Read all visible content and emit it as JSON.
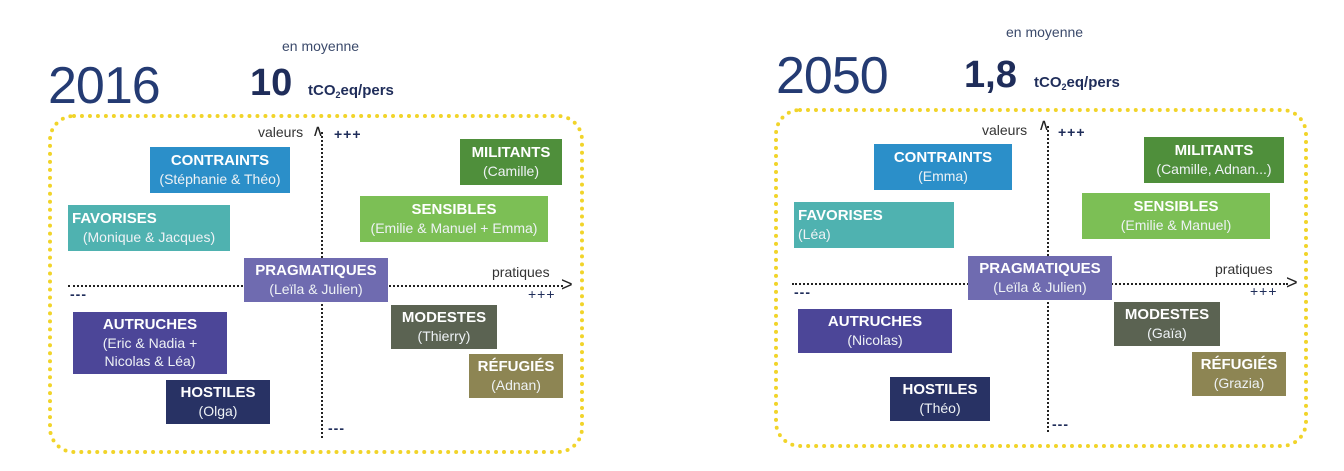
{
  "colors": {
    "contraints": "#2b8fc9",
    "militants": "#4f8f3b",
    "favorises": "#4fb2b0",
    "sensibles": "#7cbf55",
    "pragmatiques": "#6f6bb0",
    "modestes": "#5b6352",
    "autruches": "#4c4698",
    "refugies": "#8d8553",
    "hostiles": "#283264",
    "frame": "#f1d42a"
  },
  "axes": {
    "valeurs": "valeurs",
    "pratiques": "pratiques",
    "plus": "+++",
    "minus": "---"
  },
  "p2016": {
    "year": "2016",
    "moyenne": "en moyenne",
    "value": "10",
    "unit_pre": "tCO",
    "unit_sub": "2",
    "unit_post": "eq/pers",
    "groups": {
      "contraints": {
        "title": "CONTRAINTS",
        "members": "(Stéphanie & Théo)"
      },
      "militants": {
        "title": "MILITANTS",
        "members": "(Camille)"
      },
      "favorises": {
        "title": "FAVORISES",
        "members": "(Monique & Jacques)"
      },
      "sensibles": {
        "title": "SENSIBLES",
        "members": "(Emilie & Manuel + Emma)"
      },
      "pragmatiques": {
        "title": "PRAGMATIQUES",
        "members": "(Leïla & Julien)"
      },
      "modestes": {
        "title": "MODESTES",
        "members": "(Thierry)"
      },
      "autruches": {
        "title": "AUTRUCHES",
        "members1": "(Eric & Nadia +",
        "members2": "Nicolas & Léa)"
      },
      "refugies": {
        "title": "RÉFUGIÉS",
        "members": "(Adnan)"
      },
      "hostiles": {
        "title": "HOSTILES",
        "members": "(Olga)"
      }
    }
  },
  "p2050": {
    "year": "2050",
    "moyenne": "en moyenne",
    "value": "1,8",
    "unit_pre": "tCO",
    "unit_sub": "2",
    "unit_post": "eq/pers",
    "groups": {
      "contraints": {
        "title": "CONTRAINTS",
        "members": "(Emma)"
      },
      "militants": {
        "title": "MILITANTS",
        "members": "(Camille, Adnan...)"
      },
      "favorises": {
        "title": "FAVORISES",
        "members": "(Léa)"
      },
      "sensibles": {
        "title": "SENSIBLES",
        "members": "(Emilie & Manuel)"
      },
      "pragmatiques": {
        "title": "PRAGMATIQUES",
        "members": "(Leïla & Julien)"
      },
      "modestes": {
        "title": "MODESTES",
        "members": "(Gaïa)"
      },
      "autruches": {
        "title": "AUTRUCHES",
        "members": "(Nicolas)"
      },
      "refugies": {
        "title": "RÉFUGIÉS",
        "members": "(Grazia)"
      },
      "hostiles": {
        "title": "HOSTILES",
        "members": "(Théo)"
      }
    }
  }
}
